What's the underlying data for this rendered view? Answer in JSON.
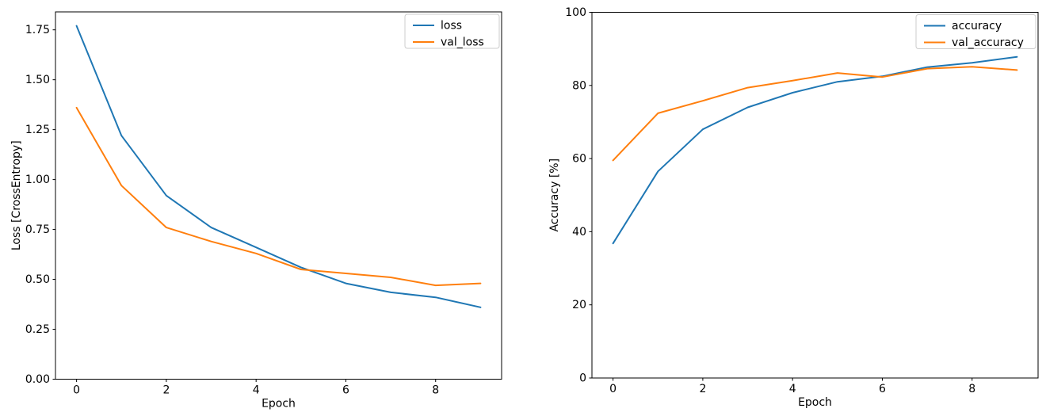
{
  "figure": {
    "background": "#ffffff",
    "text_color": "#000000",
    "spine_color": "#000000",
    "legend_border_color": "#cccccc",
    "legend_background": "#ffffff"
  },
  "chart_data": [
    {
      "type": "line",
      "title": "",
      "xlabel": "Epoch",
      "ylabel": "Loss [CrossEntropy]",
      "x": [
        0,
        1,
        2,
        3,
        4,
        5,
        6,
        7,
        8,
        9
      ],
      "series": [
        {
          "name": "loss",
          "color": "#1f77b4",
          "values": [
            1.77,
            1.22,
            0.92,
            0.76,
            0.66,
            0.56,
            0.48,
            0.435,
            0.41,
            0.36
          ]
        },
        {
          "name": "val_loss",
          "color": "#ff7f0e",
          "values": [
            1.36,
            0.97,
            0.76,
            0.69,
            0.63,
            0.55,
            0.53,
            0.51,
            0.47,
            0.48
          ]
        }
      ],
      "xlim": [
        -0.47,
        9.47
      ],
      "ylim": [
        0,
        1.84
      ],
      "xticks": {
        "values": [
          0,
          2,
          4,
          6,
          8
        ],
        "labels": [
          "0",
          "2",
          "4",
          "6",
          "8"
        ]
      },
      "yticks": {
        "values": [
          0,
          0.25,
          0.5,
          0.75,
          1.0,
          1.25,
          1.5,
          1.75
        ],
        "labels": [
          "0.00",
          "0.25",
          "0.50",
          "0.75",
          "1.00",
          "1.25",
          "1.50",
          "1.75"
        ]
      },
      "legend": {
        "position": "upper right",
        "entries": [
          "loss",
          "val_loss"
        ]
      },
      "grid": false
    },
    {
      "type": "line",
      "title": "",
      "xlabel": "Epoch",
      "ylabel": "Accuracy [%]",
      "x": [
        0,
        1,
        2,
        3,
        4,
        5,
        6,
        7,
        8,
        9
      ],
      "series": [
        {
          "name": "accuracy",
          "color": "#1f77b4",
          "values": [
            36.8,
            56.5,
            68.0,
            74.0,
            78.0,
            81.0,
            82.5,
            85.0,
            86.2,
            87.8
          ]
        },
        {
          "name": "val_accuracy",
          "color": "#ff7f0e",
          "values": [
            59.5,
            72.4,
            75.8,
            79.4,
            81.3,
            83.4,
            82.3,
            84.6,
            85.1,
            84.2
          ]
        }
      ],
      "xlim": [
        -0.47,
        9.47
      ],
      "ylim": [
        0,
        100
      ],
      "xticks": {
        "values": [
          0,
          2,
          4,
          6,
          8
        ],
        "labels": [
          "0",
          "2",
          "4",
          "6",
          "8"
        ]
      },
      "yticks": {
        "values": [
          0,
          20,
          40,
          60,
          80,
          100
        ],
        "labels": [
          "0",
          "20",
          "40",
          "60",
          "80",
          "100"
        ]
      },
      "legend": {
        "position": "upper right",
        "entries": [
          "accuracy",
          "val_accuracy"
        ]
      },
      "grid": false
    }
  ]
}
